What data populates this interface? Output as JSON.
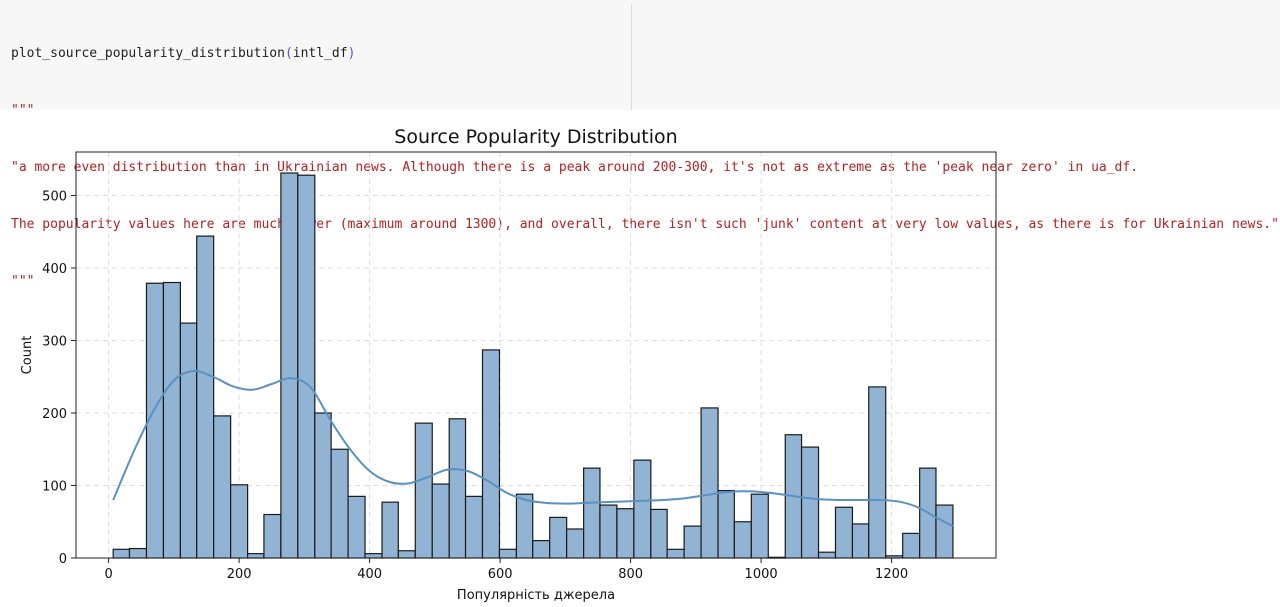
{
  "code": {
    "call": {
      "func": "plot_source_popularity_distribution",
      "open": "(",
      "arg": "intl_df",
      "close": ")"
    },
    "docstring_open": "\"\"\"",
    "docstring_lines": [
      "\"a more even distribution than in Ukrainian news. Although there is a peak around 200-300, it's not as extreme as the 'peak near zero' in ua_df.",
      "The popularity values here are much lower (maximum around 1300), and overall, there isn't such 'junk' content at very low values, as there is for Ukrainian news.\""
    ],
    "docstring_close": "\"\"\""
  },
  "chart_data": {
    "type": "bar",
    "title": "Source Popularity Distribution",
    "xlabel": "Популярність джерела",
    "ylabel": "Count",
    "xlim": [
      -50,
      1360
    ],
    "ylim": [
      0,
      560
    ],
    "xticks": [
      0,
      200,
      400,
      600,
      800,
      1000,
      1200
    ],
    "yticks": [
      0,
      100,
      200,
      300,
      400,
      500
    ],
    "grid": true,
    "bar_color": "#92b4d4",
    "edge_color": "#1a1a1a",
    "kde_color": "#5a91c0",
    "bins": [
      {
        "x0": 7,
        "x1": 32,
        "count": 12
      },
      {
        "x0": 32,
        "x1": 58,
        "count": 13
      },
      {
        "x0": 58,
        "x1": 84,
        "count": 379
      },
      {
        "x0": 84,
        "x1": 110,
        "count": 380
      },
      {
        "x0": 110,
        "x1": 135,
        "count": 324
      },
      {
        "x0": 135,
        "x1": 161,
        "count": 444
      },
      {
        "x0": 161,
        "x1": 187,
        "count": 196
      },
      {
        "x0": 187,
        "x1": 213,
        "count": 101
      },
      {
        "x0": 213,
        "x1": 238,
        "count": 6
      },
      {
        "x0": 238,
        "x1": 264,
        "count": 60
      },
      {
        "x0": 264,
        "x1": 290,
        "count": 531
      },
      {
        "x0": 290,
        "x1": 316,
        "count": 528
      },
      {
        "x0": 316,
        "x1": 341,
        "count": 200
      },
      {
        "x0": 341,
        "x1": 367,
        "count": 150
      },
      {
        "x0": 367,
        "x1": 393,
        "count": 85
      },
      {
        "x0": 393,
        "x1": 419,
        "count": 6
      },
      {
        "x0": 419,
        "x1": 444,
        "count": 77
      },
      {
        "x0": 444,
        "x1": 470,
        "count": 10
      },
      {
        "x0": 470,
        "x1": 496,
        "count": 186
      },
      {
        "x0": 496,
        "x1": 522,
        "count": 102
      },
      {
        "x0": 522,
        "x1": 547,
        "count": 192
      },
      {
        "x0": 547,
        "x1": 573,
        "count": 85
      },
      {
        "x0": 573,
        "x1": 599,
        "count": 287
      },
      {
        "x0": 599,
        "x1": 625,
        "count": 12
      },
      {
        "x0": 625,
        "x1": 650,
        "count": 88
      },
      {
        "x0": 650,
        "x1": 676,
        "count": 24
      },
      {
        "x0": 676,
        "x1": 702,
        "count": 56
      },
      {
        "x0": 702,
        "x1": 728,
        "count": 40
      },
      {
        "x0": 728,
        "x1": 753,
        "count": 124
      },
      {
        "x0": 753,
        "x1": 779,
        "count": 73
      },
      {
        "x0": 779,
        "x1": 805,
        "count": 68
      },
      {
        "x0": 805,
        "x1": 831,
        "count": 135
      },
      {
        "x0": 831,
        "x1": 856,
        "count": 67
      },
      {
        "x0": 856,
        "x1": 882,
        "count": 12
      },
      {
        "x0": 882,
        "x1": 908,
        "count": 44
      },
      {
        "x0": 908,
        "x1": 934,
        "count": 207
      },
      {
        "x0": 934,
        "x1": 959,
        "count": 93
      },
      {
        "x0": 959,
        "x1": 985,
        "count": 50
      },
      {
        "x0": 985,
        "x1": 1011,
        "count": 88
      },
      {
        "x0": 1011,
        "x1": 1037,
        "count": 1
      },
      {
        "x0": 1037,
        "x1": 1062,
        "count": 170
      },
      {
        "x0": 1062,
        "x1": 1088,
        "count": 153
      },
      {
        "x0": 1088,
        "x1": 1114,
        "count": 8
      },
      {
        "x0": 1114,
        "x1": 1140,
        "count": 70
      },
      {
        "x0": 1140,
        "x1": 1165,
        "count": 47
      },
      {
        "x0": 1165,
        "x1": 1191,
        "count": 236
      },
      {
        "x0": 1191,
        "x1": 1217,
        "count": 3
      },
      {
        "x0": 1217,
        "x1": 1243,
        "count": 34
      },
      {
        "x0": 1243,
        "x1": 1268,
        "count": 124
      },
      {
        "x0": 1268,
        "x1": 1294,
        "count": 73
      }
    ],
    "kde": {
      "x": [
        7,
        40,
        70,
        100,
        130,
        160,
        190,
        220,
        250,
        280,
        310,
        340,
        370,
        400,
        430,
        460,
        490,
        520,
        550,
        580,
        610,
        640,
        670,
        700,
        730,
        760,
        790,
        820,
        850,
        880,
        910,
        940,
        970,
        1000,
        1030,
        1060,
        1090,
        1120,
        1150,
        1180,
        1210,
        1240,
        1270,
        1294
      ],
      "y": [
        80,
        150,
        205,
        245,
        258,
        250,
        237,
        232,
        240,
        248,
        235,
        190,
        150,
        120,
        105,
        103,
        112,
        122,
        120,
        107,
        90,
        80,
        76,
        75,
        76,
        77,
        78,
        79,
        80,
        82,
        86,
        90,
        92,
        91,
        88,
        84,
        81,
        80,
        80,
        80,
        78,
        70,
        55,
        44
      ]
    }
  }
}
